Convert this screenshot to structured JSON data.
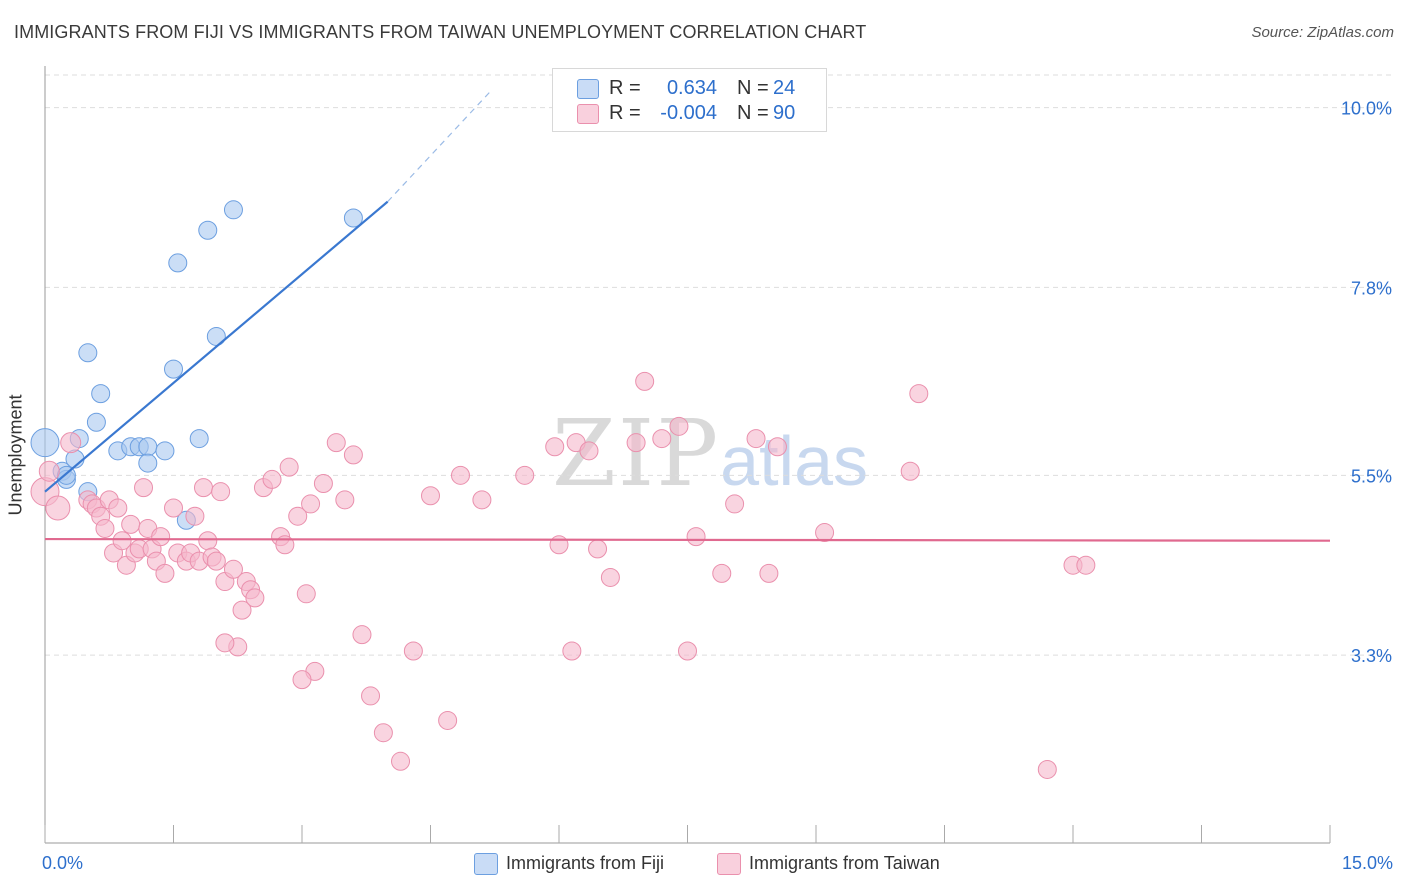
{
  "header": {
    "title": "IMMIGRANTS FROM FIJI VS IMMIGRANTS FROM TAIWAN UNEMPLOYMENT CORRELATION CHART",
    "source": "Source: ZipAtlas.com"
  },
  "watermark": {
    "zip": "ZIP",
    "atlas": "atlas"
  },
  "stats": [
    {
      "r_label": "R =",
      "r_value": "0.634",
      "n_label": "N =",
      "n_value": "24",
      "color": "#a9c8f0"
    },
    {
      "r_label": "R =",
      "r_value": "-0.004",
      "n_label": "N =",
      "n_value": "90",
      "color": "#f5b8cb"
    }
  ],
  "legend": [
    {
      "label": "Immigrants from Fiji",
      "color": "#a9c8f0"
    },
    {
      "label": "Immigrants from Taiwan",
      "color": "#f5b8cb"
    }
  ],
  "chart_data": {
    "type": "scatter",
    "title": "IMMIGRANTS FROM FIJI VS IMMIGRANTS FROM TAIWAN UNEMPLOYMENT CORRELATION CHART",
    "xlabel": "",
    "ylabel": "Unemployment",
    "xlim": [
      0,
      15
    ],
    "ylim": [
      1.0,
      10.4
    ],
    "x_tick_labels": [
      "0.0%",
      "15.0%"
    ],
    "y_ticks": [
      3.3,
      5.5,
      7.8,
      10.0
    ],
    "y_tick_labels": [
      "3.3%",
      "5.5%",
      "7.8%",
      "10.0%"
    ],
    "grid": true,
    "colors": {
      "fiji": "#4a86d8",
      "taiwan": "#e0698f",
      "tick_label": "#2d6fcc"
    },
    "series": [
      {
        "name": "Immigrants from Fiji",
        "color": "#a9c8f0",
        "edge": "#6c9fe0",
        "points": [
          [
            0.0,
            5.9,
            14
          ],
          [
            0.2,
            5.55,
            9
          ],
          [
            0.25,
            5.45,
            9
          ],
          [
            0.35,
            5.7,
            9
          ],
          [
            0.4,
            5.95,
            9
          ],
          [
            0.5,
            5.3,
            9
          ],
          [
            0.5,
            7.0,
            9
          ],
          [
            0.6,
            6.15,
            9
          ],
          [
            0.65,
            6.5,
            9
          ],
          [
            0.85,
            5.8,
            9
          ],
          [
            1.0,
            5.85,
            9
          ],
          [
            1.1,
            5.85,
            9
          ],
          [
            1.2,
            5.85,
            9
          ],
          [
            1.2,
            5.65,
            9
          ],
          [
            1.4,
            5.8,
            9
          ],
          [
            1.5,
            6.8,
            9
          ],
          [
            1.55,
            8.1,
            9
          ],
          [
            1.65,
            4.95,
            9
          ],
          [
            1.8,
            5.95,
            9
          ],
          [
            1.9,
            8.5,
            9
          ],
          [
            2.0,
            7.2,
            9
          ],
          [
            2.2,
            8.75,
            9
          ],
          [
            3.6,
            8.65,
            9
          ],
          [
            0.25,
            5.5,
            9
          ]
        ]
      },
      {
        "name": "Immigrants from Taiwan",
        "color": "#f5b8cb",
        "edge": "#ea90ad",
        "points": [
          [
            0.0,
            5.3,
            14
          ],
          [
            0.05,
            5.55,
            10
          ],
          [
            0.15,
            5.1,
            12
          ],
          [
            0.3,
            5.9,
            10
          ],
          [
            0.5,
            5.2,
            9
          ],
          [
            0.55,
            5.15,
            9
          ],
          [
            0.6,
            5.1,
            9
          ],
          [
            0.65,
            5.0,
            9
          ],
          [
            0.7,
            4.85,
            9
          ],
          [
            0.75,
            5.2,
            9
          ],
          [
            0.8,
            4.55,
            9
          ],
          [
            0.85,
            5.1,
            9
          ],
          [
            0.9,
            4.7,
            9
          ],
          [
            0.95,
            4.4,
            9
          ],
          [
            1.0,
            4.9,
            9
          ],
          [
            1.05,
            4.55,
            9
          ],
          [
            1.1,
            4.6,
            9
          ],
          [
            1.15,
            5.35,
            9
          ],
          [
            1.2,
            4.85,
            9
          ],
          [
            1.25,
            4.6,
            9
          ],
          [
            1.3,
            4.45,
            9
          ],
          [
            1.35,
            4.75,
            9
          ],
          [
            1.4,
            4.3,
            9
          ],
          [
            1.5,
            5.1,
            9
          ],
          [
            1.55,
            4.55,
            9
          ],
          [
            1.65,
            4.45,
            9
          ],
          [
            1.7,
            4.55,
            9
          ],
          [
            1.75,
            5.0,
            9
          ],
          [
            1.8,
            4.45,
            9
          ],
          [
            1.85,
            5.35,
            9
          ],
          [
            1.9,
            4.7,
            9
          ],
          [
            1.95,
            4.5,
            9
          ],
          [
            2.0,
            4.45,
            9
          ],
          [
            2.05,
            5.3,
            9
          ],
          [
            2.1,
            4.2,
            9
          ],
          [
            2.2,
            4.35,
            9
          ],
          [
            2.25,
            3.4,
            9
          ],
          [
            2.3,
            3.85,
            9
          ],
          [
            2.35,
            4.2,
            9
          ],
          [
            2.4,
            4.1,
            9
          ],
          [
            2.45,
            4.0,
            9
          ],
          [
            2.55,
            5.35,
            9
          ],
          [
            2.65,
            5.45,
            9
          ],
          [
            2.75,
            4.75,
            9
          ],
          [
            2.8,
            4.65,
            9
          ],
          [
            2.85,
            5.6,
            9
          ],
          [
            2.95,
            5.0,
            9
          ],
          [
            3.05,
            4.05,
            9
          ],
          [
            3.1,
            5.15,
            9
          ],
          [
            3.15,
            3.1,
            9
          ],
          [
            3.25,
            5.4,
            9
          ],
          [
            3.4,
            5.9,
            9
          ],
          [
            3.5,
            5.2,
            9
          ],
          [
            3.6,
            5.75,
            9
          ],
          [
            3.7,
            3.55,
            9
          ],
          [
            3.8,
            2.8,
            9
          ],
          [
            3.95,
            2.35,
            9
          ],
          [
            4.15,
            2.0,
            9
          ],
          [
            4.3,
            3.35,
            9
          ],
          [
            4.5,
            5.25,
            9
          ],
          [
            4.7,
            2.5,
            9
          ],
          [
            4.85,
            5.5,
            9
          ],
          [
            5.1,
            5.2,
            9
          ],
          [
            5.6,
            5.5,
            9
          ],
          [
            5.95,
            5.85,
            9
          ],
          [
            6.0,
            4.65,
            9
          ],
          [
            6.15,
            3.35,
            9
          ],
          [
            6.2,
            5.9,
            9
          ],
          [
            6.35,
            5.8,
            9
          ],
          [
            6.45,
            4.6,
            9
          ],
          [
            6.6,
            4.25,
            9
          ],
          [
            6.9,
            5.9,
            9
          ],
          [
            7.0,
            6.65,
            9
          ],
          [
            7.2,
            5.95,
            9
          ],
          [
            7.4,
            6.1,
            9
          ],
          [
            7.5,
            3.35,
            9
          ],
          [
            7.6,
            4.75,
            9
          ],
          [
            7.9,
            4.3,
            9
          ],
          [
            8.05,
            5.15,
            9
          ],
          [
            8.3,
            5.95,
            9
          ],
          [
            8.45,
            4.3,
            9
          ],
          [
            8.55,
            5.85,
            9
          ],
          [
            9.1,
            4.8,
            9
          ],
          [
            10.1,
            5.55,
            9
          ],
          [
            10.2,
            6.5,
            9
          ],
          [
            11.7,
            1.9,
            9
          ],
          [
            12.0,
            4.4,
            9
          ],
          [
            12.15,
            4.4,
            9
          ],
          [
            2.1,
            3.45,
            9
          ],
          [
            3.0,
            3.0,
            9
          ]
        ]
      }
    ],
    "trend_lines": [
      {
        "series": "Immigrants from Fiji",
        "x": [
          0.0,
          4.0
        ],
        "y": [
          5.3,
          8.85
        ],
        "extend_dashed_to": [
          5.2,
          10.2
        ],
        "color": "#3a78d0"
      },
      {
        "series": "Immigrants from Taiwan",
        "x": [
          0.0,
          15.0
        ],
        "y": [
          4.72,
          4.7
        ],
        "color": "#e0698f"
      }
    ]
  }
}
